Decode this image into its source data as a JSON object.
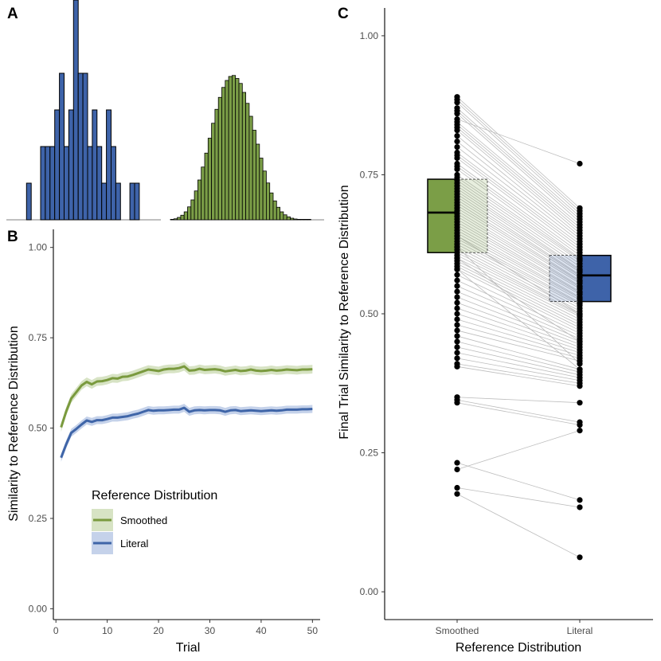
{
  "colors": {
    "smoothed": "#7a9a3e",
    "smoothed_fill": "#7b9e47",
    "smoothed_band": "#d7e3c4",
    "literal": "#3f65a8",
    "literal_fill": "#3e63a9",
    "literal_band": "#c5d2ea",
    "pair_line": "#bdbdbd",
    "point": "#000000"
  },
  "chart_data": [
    {
      "panel": "A",
      "type": "bar",
      "title": "",
      "label": "A",
      "series": [
        {
          "name": "Literal",
          "x": [
            -16,
            -13,
            -12,
            -11,
            -10,
            -9,
            -8,
            -7,
            -6,
            -5,
            -4,
            -3,
            -2,
            -1,
            0,
            1,
            2,
            3,
            4,
            5,
            6,
            7,
            8,
            9
          ],
          "values": [
            1,
            2,
            2,
            2,
            3,
            4,
            2,
            3,
            6,
            4,
            4,
            2,
            3,
            2,
            1,
            3,
            2,
            1,
            0,
            0,
            1,
            1,
            0,
            0
          ],
          "color_key": "literal_fill"
        },
        {
          "name": "Smoothed",
          "x": [
            0,
            1,
            2,
            3,
            4,
            5,
            6,
            7,
            8,
            9,
            10,
            11,
            12,
            13,
            14,
            15,
            16,
            17,
            18,
            19,
            20,
            21,
            22,
            23,
            24,
            25,
            26,
            27,
            28,
            29,
            30,
            31,
            32,
            33,
            34,
            35,
            36,
            37,
            38,
            39,
            40
          ],
          "values": [
            0.2,
            0.5,
            1.2,
            2.3,
            4,
            6.5,
            10,
            14.5,
            20,
            26.5,
            33.5,
            41,
            48.5,
            55.5,
            61.5,
            66.5,
            70,
            72,
            72.5,
            71,
            68.5,
            64,
            58.5,
            52,
            45,
            38,
            31,
            24.5,
            18.5,
            13.5,
            9.5,
            6.3,
            4,
            2.5,
            1.5,
            0.8,
            0.4,
            0.2,
            0.1,
            0.05,
            0.02
          ],
          "color_key": "smoothed_fill"
        }
      ]
    },
    {
      "panel": "B",
      "type": "line",
      "label": "B",
      "xlabel": "Trial",
      "ylabel": "Similarity to Reference Distribution",
      "xlim": [
        -0.5,
        51.5
      ],
      "ylim": [
        -0.03,
        1.05
      ],
      "xticks": [
        0,
        10,
        20,
        30,
        40,
        50
      ],
      "xtick_labels": [
        "0",
        "10",
        "20",
        "30",
        "40",
        "50"
      ],
      "yticks": [
        0,
        0.25,
        0.5,
        0.75,
        1
      ],
      "ytick_labels": [
        "0.00",
        "0.25",
        "0.50",
        "0.75",
        "1.00"
      ],
      "legend": {
        "title": "Reference Distribution",
        "items": [
          "Smoothed",
          "Literal"
        ],
        "placement": "bottom-left"
      },
      "series": [
        {
          "name": "Smoothed",
          "x": [
            1,
            2,
            3,
            4,
            5,
            6,
            7,
            8,
            9,
            10,
            11,
            12,
            13,
            14,
            15,
            16,
            17,
            18,
            19,
            20,
            21,
            22,
            23,
            24,
            25,
            26,
            27,
            28,
            29,
            30,
            31,
            32,
            33,
            34,
            35,
            36,
            37,
            38,
            39,
            40,
            41,
            42,
            43,
            44,
            45,
            46,
            47,
            48,
            49,
            50
          ],
          "values": [
            0.502,
            0.546,
            0.582,
            0.6,
            0.618,
            0.628,
            0.621,
            0.629,
            0.63,
            0.633,
            0.638,
            0.637,
            0.642,
            0.643,
            0.647,
            0.652,
            0.657,
            0.662,
            0.66,
            0.658,
            0.662,
            0.664,
            0.664,
            0.666,
            0.671,
            0.659,
            0.66,
            0.664,
            0.661,
            0.662,
            0.663,
            0.661,
            0.657,
            0.659,
            0.661,
            0.658,
            0.659,
            0.662,
            0.659,
            0.658,
            0.659,
            0.661,
            0.659,
            0.66,
            0.662,
            0.661,
            0.66,
            0.662,
            0.662,
            0.663
          ],
          "ci": 0.012
        },
        {
          "name": "Literal",
          "x": [
            1,
            2,
            3,
            4,
            5,
            6,
            7,
            8,
            9,
            10,
            11,
            12,
            13,
            14,
            15,
            16,
            17,
            18,
            19,
            20,
            21,
            22,
            23,
            24,
            25,
            26,
            27,
            28,
            29,
            30,
            31,
            32,
            33,
            34,
            35,
            36,
            37,
            38,
            39,
            40,
            41,
            42,
            43,
            44,
            45,
            46,
            47,
            48,
            49,
            50
          ],
          "values": [
            0.418,
            0.455,
            0.487,
            0.498,
            0.51,
            0.521,
            0.517,
            0.522,
            0.522,
            0.525,
            0.529,
            0.529,
            0.531,
            0.533,
            0.537,
            0.54,
            0.545,
            0.55,
            0.548,
            0.549,
            0.549,
            0.55,
            0.551,
            0.551,
            0.556,
            0.545,
            0.549,
            0.55,
            0.549,
            0.55,
            0.55,
            0.549,
            0.545,
            0.549,
            0.55,
            0.547,
            0.548,
            0.549,
            0.548,
            0.547,
            0.548,
            0.549,
            0.548,
            0.549,
            0.551,
            0.551,
            0.551,
            0.552,
            0.552,
            0.553
          ],
          "ci": 0.011
        }
      ]
    },
    {
      "panel": "C",
      "type": "box",
      "label": "C",
      "xlabel": "Reference Distribution",
      "ylabel": "Final Trial Similarity to Reference Distribution",
      "ylim": [
        -0.05,
        1.05
      ],
      "categories": [
        "Smoothed",
        "Literal"
      ],
      "yticks": [
        0,
        0.25,
        0.5,
        0.75,
        1
      ],
      "ytick_labels": [
        "0.00",
        "0.25",
        "0.50",
        "0.75",
        "1.00"
      ],
      "boxes": [
        {
          "name": "Smoothed",
          "q1": 0.61,
          "median": 0.682,
          "q3": 0.742
        },
        {
          "name": "Literal",
          "q1": 0.522,
          "median": 0.569,
          "q3": 0.605
        }
      ],
      "pairs": [
        [
          0.89,
          0.69
        ],
        [
          0.885,
          0.685
        ],
        [
          0.88,
          0.68
        ],
        [
          0.87,
          0.675
        ],
        [
          0.865,
          0.67
        ],
        [
          0.86,
          0.665
        ],
        [
          0.85,
          0.77
        ],
        [
          0.845,
          0.66
        ],
        [
          0.84,
          0.655
        ],
        [
          0.835,
          0.65
        ],
        [
          0.83,
          0.645
        ],
        [
          0.82,
          0.64
        ],
        [
          0.81,
          0.635
        ],
        [
          0.8,
          0.63
        ],
        [
          0.79,
          0.625
        ],
        [
          0.785,
          0.62
        ],
        [
          0.78,
          0.615
        ],
        [
          0.77,
          0.61
        ],
        [
          0.765,
          0.605
        ],
        [
          0.76,
          0.6
        ],
        [
          0.75,
          0.598
        ],
        [
          0.745,
          0.595
        ],
        [
          0.74,
          0.59
        ],
        [
          0.735,
          0.585
        ],
        [
          0.73,
          0.58
        ],
        [
          0.725,
          0.578
        ],
        [
          0.72,
          0.575
        ],
        [
          0.715,
          0.57
        ],
        [
          0.71,
          0.568
        ],
        [
          0.705,
          0.565
        ],
        [
          0.7,
          0.56
        ],
        [
          0.695,
          0.558
        ],
        [
          0.69,
          0.555
        ],
        [
          0.685,
          0.55
        ],
        [
          0.68,
          0.548
        ],
        [
          0.675,
          0.545
        ],
        [
          0.67,
          0.54
        ],
        [
          0.665,
          0.538
        ],
        [
          0.66,
          0.535
        ],
        [
          0.655,
          0.53
        ],
        [
          0.65,
          0.528
        ],
        [
          0.645,
          0.525
        ],
        [
          0.64,
          0.52
        ],
        [
          0.635,
          0.518
        ],
        [
          0.63,
          0.515
        ],
        [
          0.625,
          0.51
        ],
        [
          0.62,
          0.505
        ],
        [
          0.615,
          0.5
        ],
        [
          0.61,
          0.498
        ],
        [
          0.605,
          0.495
        ],
        [
          0.6,
          0.49
        ],
        [
          0.595,
          0.485
        ],
        [
          0.59,
          0.48
        ],
        [
          0.585,
          0.475
        ],
        [
          0.58,
          0.47
        ],
        [
          0.57,
          0.465
        ],
        [
          0.56,
          0.46
        ],
        [
          0.55,
          0.455
        ],
        [
          0.54,
          0.45
        ],
        [
          0.53,
          0.445
        ],
        [
          0.52,
          0.44
        ],
        [
          0.51,
          0.435
        ],
        [
          0.5,
          0.43
        ],
        [
          0.49,
          0.425
        ],
        [
          0.48,
          0.42
        ],
        [
          0.47,
          0.415
        ],
        [
          0.46,
          0.4
        ],
        [
          0.45,
          0.395
        ],
        [
          0.44,
          0.39
        ],
        [
          0.43,
          0.385
        ],
        [
          0.42,
          0.38
        ],
        [
          0.41,
          0.375
        ],
        [
          0.405,
          0.37
        ],
        [
          0.35,
          0.34
        ],
        [
          0.345,
          0.305
        ],
        [
          0.34,
          0.3
        ],
        [
          0.232,
          0.165
        ],
        [
          0.22,
          0.29
        ],
        [
          0.187,
          0.152
        ],
        [
          0.176,
          0.062
        ],
        [
          0.64,
          0.5
        ],
        [
          0.62,
          0.41
        ],
        [
          0.6,
          0.45
        ],
        [
          0.58,
          0.4
        ]
      ]
    }
  ]
}
